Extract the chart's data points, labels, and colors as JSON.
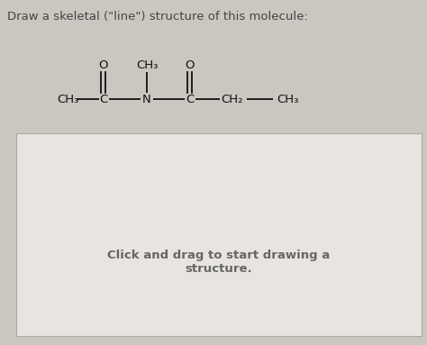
{
  "title": "Draw a skeletal (\"line\") structure of this molecule:",
  "title_fontsize": 9.5,
  "title_color": "#444444",
  "bg_color": "#cac7c1",
  "box_color": "#e8e5e0",
  "box_border_color": "#aaaaaa",
  "click_text_line1": "Click and drag to start drawing a",
  "click_text_line2": "structure.",
  "click_text_fontsize": 9.5,
  "click_text_color": "#666666",
  "molecule_color": "#111111",
  "molecule_fontsize": 9.5,
  "figw": 4.74,
  "figh": 3.83,
  "dpi": 100
}
